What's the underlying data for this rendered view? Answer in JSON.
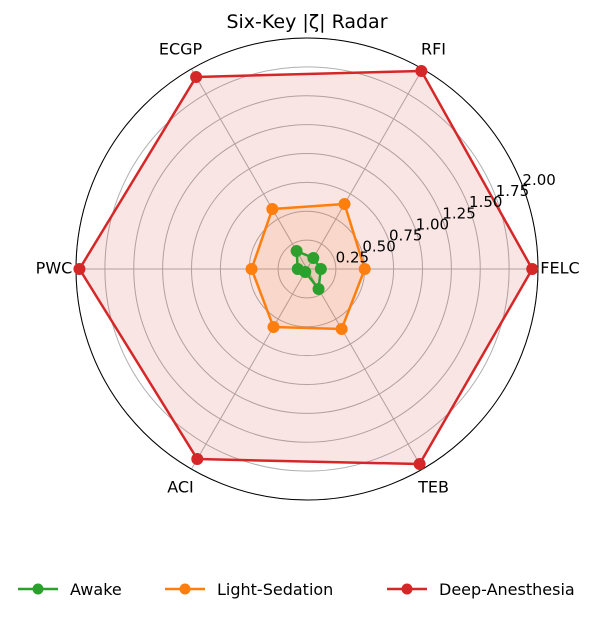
{
  "chart_data": {
    "type": "radar",
    "title": "Six-Key |ζ| Radar",
    "axes": [
      "FELC",
      "RFI",
      "ECGP",
      "PWC",
      "ACI",
      "TEB"
    ],
    "rlim": [
      0,
      2.0
    ],
    "rticks": [
      "0.25",
      "0.50",
      "0.75",
      "1.00",
      "1.25",
      "1.50",
      "1.75",
      "2.00"
    ],
    "grid": true,
    "legend_position": "bottom",
    "series": [
      {
        "name": "Awake",
        "color": "#2ca02c",
        "values": [
          0.12,
          0.11,
          0.18,
          0.08,
          0.03,
          0.2
        ]
      },
      {
        "name": "Light-Sedation",
        "color": "#ff7f0e",
        "values": [
          0.5,
          0.65,
          0.6,
          0.48,
          0.58,
          0.6
        ]
      },
      {
        "name": "Deep-Anesthesia",
        "color": "#d62728",
        "values": [
          1.95,
          1.98,
          1.92,
          1.97,
          1.9,
          1.95
        ]
      }
    ]
  }
}
